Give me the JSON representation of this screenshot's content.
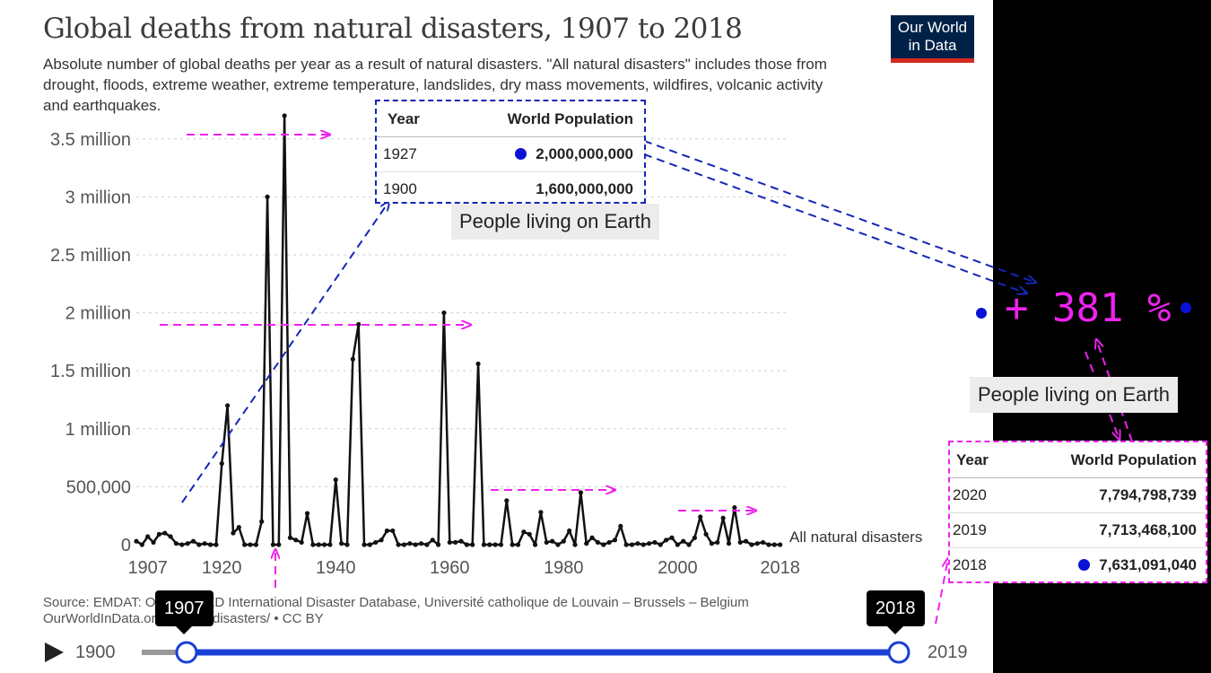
{
  "title": "Global deaths from natural disasters, 1907 to 2018",
  "subtitle": "Absolute number of global deaths per year as a result of natural disasters. \"All natural disasters\" includes those from drought, floods, extreme weather, extreme temperature, landslides, dry mass movements, wildfires, volcanic activity and earthquakes.",
  "logo": {
    "line1": "Our World",
    "line2": "in Data",
    "bg": "#002147",
    "accent": "#d42b21"
  },
  "source_line1": "Source: EMDAT: OFDA/CRED International Disaster Database, Université catholique de Louvain – Brussels – Belgium",
  "source_line2": "OurWorldInData.org/natural-disasters/ • CC BY",
  "timeline": {
    "start_label": "1900",
    "end_label": "2019",
    "handle_left": "1907",
    "handle_right": "2018",
    "play_icon": "play-icon",
    "color": "#1a3fd6"
  },
  "chart_data": {
    "type": "line",
    "title": "Global deaths from natural disasters, 1907 to 2018",
    "xlabel": "",
    "ylabel": "",
    "xlim": [
      1905,
      2019
    ],
    "ylim": [
      0,
      3800000
    ],
    "x_ticks": [
      1907,
      1920,
      1940,
      1960,
      1980,
      2000,
      2018
    ],
    "y_ticks": [
      0,
      500000,
      1000000,
      1500000,
      2000000,
      2500000,
      3000000,
      3500000
    ],
    "y_tick_labels": [
      "0",
      "500,000",
      "1 million",
      "1.5 million",
      "2 million",
      "2.5 million",
      "3 million",
      "3.5 million"
    ],
    "grid": "horizontal-dashed",
    "series": [
      {
        "name": "All natural disasters",
        "color": "#111111",
        "x": [
          1905,
          1906,
          1907,
          1908,
          1909,
          1910,
          1911,
          1912,
          1913,
          1914,
          1915,
          1916,
          1917,
          1918,
          1919,
          1920,
          1921,
          1922,
          1923,
          1924,
          1925,
          1926,
          1927,
          1928,
          1929,
          1930,
          1931,
          1932,
          1933,
          1934,
          1935,
          1936,
          1937,
          1938,
          1939,
          1940,
          1941,
          1942,
          1943,
          1944,
          1945,
          1946,
          1947,
          1948,
          1949,
          1950,
          1951,
          1952,
          1953,
          1954,
          1955,
          1956,
          1957,
          1958,
          1959,
          1960,
          1961,
          1962,
          1963,
          1964,
          1965,
          1966,
          1967,
          1968,
          1969,
          1970,
          1971,
          1972,
          1973,
          1974,
          1975,
          1976,
          1977,
          1978,
          1979,
          1980,
          1981,
          1982,
          1983,
          1984,
          1985,
          1986,
          1987,
          1988,
          1989,
          1990,
          1991,
          1992,
          1993,
          1994,
          1995,
          1996,
          1997,
          1998,
          1999,
          2000,
          2001,
          2002,
          2003,
          2004,
          2005,
          2006,
          2007,
          2008,
          2009,
          2010,
          2011,
          2012,
          2013,
          2014,
          2015,
          2016,
          2017,
          2018
        ],
        "values": [
          30000,
          0,
          70000,
          20000,
          90000,
          100000,
          70000,
          10000,
          0,
          10000,
          30000,
          0,
          10000,
          0,
          0,
          700000,
          1200000,
          100000,
          150000,
          0,
          0,
          0,
          200000,
          3000000,
          0,
          0,
          3700000,
          60000,
          40000,
          20000,
          270000,
          0,
          0,
          0,
          0,
          560000,
          10000,
          0,
          1600000,
          1900000,
          0,
          0,
          20000,
          40000,
          120000,
          120000,
          0,
          0,
          10000,
          0,
          10000,
          0,
          40000,
          0,
          2000000,
          20000,
          20000,
          30000,
          0,
          0,
          1560000,
          0,
          0,
          0,
          0,
          380000,
          0,
          0,
          110000,
          90000,
          0,
          280000,
          20000,
          30000,
          0,
          30000,
          120000,
          0,
          450000,
          10000,
          60000,
          20000,
          0,
          20000,
          40000,
          160000,
          0,
          0,
          10000,
          0,
          10000,
          20000,
          0,
          40000,
          60000,
          0,
          30000,
          0,
          60000,
          240000,
          90000,
          10000,
          20000,
          230000,
          10000,
          320000,
          20000,
          30000,
          0,
          10000,
          20000,
          0,
          0,
          0
        ]
      }
    ]
  },
  "pop_table_1": {
    "header_year": "Year",
    "header_pop": "World Population",
    "rows": [
      {
        "year": "1927",
        "pop": "2,000,000,000",
        "dot": true
      },
      {
        "year": "1900",
        "pop": "1,600,000,000",
        "dot": false
      }
    ],
    "caption": "People living on Earth",
    "border_color": "#1526b8"
  },
  "pop_table_2": {
    "header_year": "Year",
    "header_pop": "World Population",
    "rows": [
      {
        "year": "2020",
        "pop": "7,794,798,739",
        "dot": false
      },
      {
        "year": "2019",
        "pop": "7,713,468,100",
        "dot": false
      },
      {
        "year": "2018",
        "pop": "7,631,091,040",
        "dot": true
      }
    ],
    "caption": "People living on Earth",
    "border_color": "#ee22ee"
  },
  "growth_label": "+ 381 %",
  "annotation_colors": {
    "magenta": "#ee22ee",
    "blue": "#1526b8",
    "dot_blue": "#0a12d6"
  }
}
